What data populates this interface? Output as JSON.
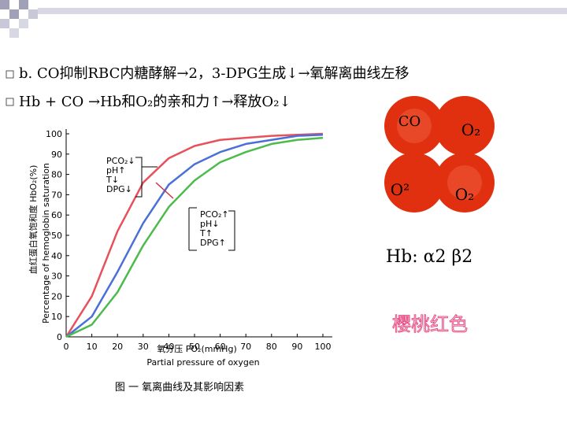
{
  "slide": {
    "line1": "b. CO抑制RBC内糖酵解→2，3-DPG生成↓→氧解离曲线左移",
    "line2": "Hb + CO →Hb和O₂的亲和力↑→释放O₂↓",
    "circles": [
      "CO",
      "O₂",
      "O²",
      "O₂"
    ],
    "hb": "Hb: α2 β2",
    "color_note": "樱桃红色"
  },
  "chart_data": {
    "type": "line",
    "y_label_cn": "血红蛋白氧饱和度 HbO₂(%)",
    "y_label_en": "Percentage of hemoglobin saturation",
    "x_label_cn": "氧分压 PO₂(mmHg)",
    "x_label_en": "Partial pressure of oxygen",
    "caption": "图 一  氧离曲线及其影响因素",
    "annotation_left": [
      "PCO₂↓",
      "pH↑",
      "T↓",
      "DPG↓"
    ],
    "annotation_right": [
      "PCO₂↑",
      "pH↓",
      "T↑",
      "DPG↑"
    ],
    "x": [
      0,
      10,
      20,
      30,
      40,
      50,
      60,
      70,
      80,
      90,
      100
    ],
    "series": [
      {
        "color": "#e8505b",
        "values": [
          0,
          20,
          52,
          76,
          88,
          94,
          97,
          98,
          99,
          99.5,
          100
        ]
      },
      {
        "color": "#4a6fd8",
        "values": [
          0,
          10,
          32,
          56,
          75,
          85,
          91,
          95,
          97,
          99,
          99.5
        ]
      },
      {
        "color": "#4cbb4c",
        "values": [
          0,
          6,
          22,
          45,
          64,
          77,
          86,
          91,
          95,
          97,
          98
        ]
      }
    ],
    "xlim": [
      0,
      100
    ],
    "xticks": [
      0,
      10,
      20,
      30,
      40,
      50,
      60,
      70,
      80,
      90,
      100
    ],
    "ylim": [
      0,
      100
    ],
    "yticks": [
      0,
      10,
      20,
      30,
      40,
      50,
      60,
      70,
      80,
      90,
      100
    ]
  }
}
